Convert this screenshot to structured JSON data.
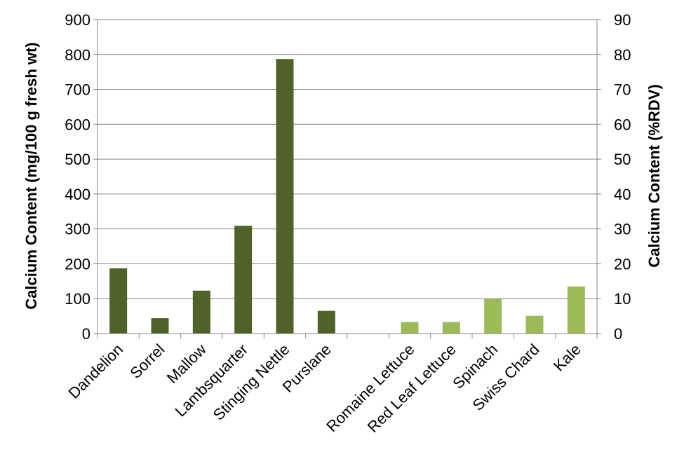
{
  "chart_data": {
    "type": "bar",
    "title": "",
    "categories": [
      "Dandelion",
      "Sorrel",
      "Mallow",
      "Lambsquarter",
      "Stinging Nettle",
      "Purslane",
      "",
      "Romaine Lettuce",
      "Red Leaf Lettuce",
      "Spinach",
      "Swiss Chard",
      "Kale"
    ],
    "values": [
      187,
      44,
      123,
      309,
      787,
      65,
      0,
      33,
      33,
      99,
      51,
      135
    ],
    "bar_colors": [
      "#4f6228",
      "#4f6228",
      "#4f6228",
      "#4f6228",
      "#4f6228",
      "#4f6228",
      "#4f6228",
      "#9bbb59",
      "#9bbb59",
      "#9bbb59",
      "#9bbb59",
      "#9bbb59"
    ],
    "ylabel": "Calcium Content (mg/100 g fresh wt)",
    "ylim": [
      0,
      900
    ],
    "yticks": [
      "0",
      "100",
      "200",
      "300",
      "400",
      "500",
      "600",
      "700",
      "800",
      "900"
    ],
    "y2label": "Calcium Content (%RDV)",
    "y2lim": [
      0,
      90
    ],
    "y2ticks": [
      "0",
      "10",
      "20",
      "30",
      "40",
      "50",
      "60",
      "70",
      "80",
      "90"
    ],
    "grid": true,
    "legend": "none"
  }
}
